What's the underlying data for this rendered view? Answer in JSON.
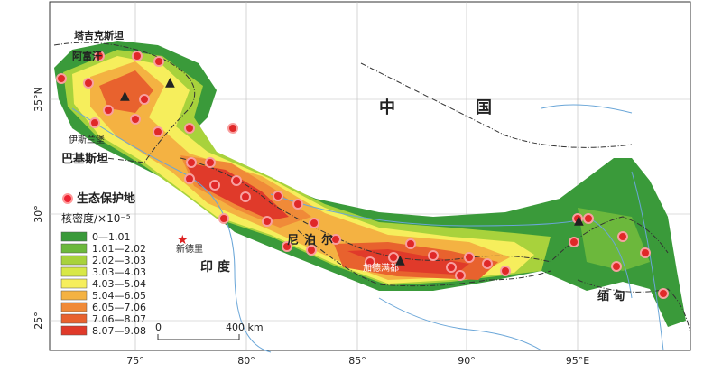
{
  "map": {
    "countries": {
      "tajikistan": "塔吉克斯坦",
      "afghanistan": "阿富汗",
      "china_1": "中",
      "china_2": "国",
      "pakistan": "巴基斯坦",
      "nepal": "尼泊尔",
      "india": "印 度",
      "myanmar": "缅 甸"
    },
    "cities": {
      "islamabad": "伊斯兰堡",
      "new_delhi": "新德里",
      "kathmandu": "加德满都"
    },
    "legend": {
      "protected_area": "生态保护地",
      "density_title": "核密度/×10⁻⁵",
      "classes": [
        {
          "label": "0—1.01",
          "color": "#3a9a3a"
        },
        {
          "label": "1.01—2.02",
          "color": "#6cb83c"
        },
        {
          "label": "2.02—3.03",
          "color": "#a8d23c"
        },
        {
          "label": "3.03—4.03",
          "color": "#d8e846"
        },
        {
          "label": "4.03—5.04",
          "color": "#f6ee5c"
        },
        {
          "label": "5.04—6.05",
          "color": "#f4b242"
        },
        {
          "label": "6.05—7.06",
          "color": "#f08a38"
        },
        {
          "label": "7.06—8.07",
          "color": "#e8622e"
        },
        {
          "label": "8.07—9.08",
          "color": "#e03a2a"
        }
      ]
    },
    "scale": {
      "zero": "0",
      "end": "400 km"
    },
    "lon_ticks": [
      "75°",
      "80°",
      "85°",
      "90°",
      "95°E"
    ],
    "lat_ticks": [
      "35°N",
      "30°",
      "25°"
    ]
  }
}
